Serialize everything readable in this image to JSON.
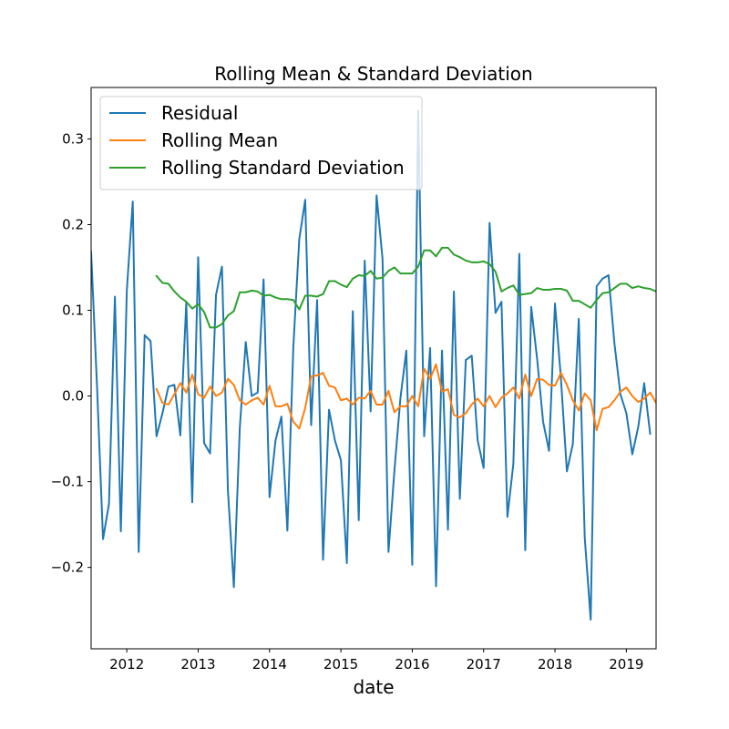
{
  "chart_data": {
    "type": "line",
    "title": "Rolling Mean & Standard Deviation",
    "xlabel": "date",
    "ylabel": "",
    "x_start": "2011-07",
    "x_end": "2019-06",
    "x_ticks": [
      "2012",
      "2013",
      "2014",
      "2015",
      "2016",
      "2017",
      "2018",
      "2019"
    ],
    "xlim": [
      "2011-07",
      "2019-06"
    ],
    "ylim": [
      -0.295,
      0.36
    ],
    "y_ticks": [
      -0.2,
      -0.1,
      0.0,
      0.1,
      0.2,
      0.3
    ],
    "y_tick_labels": [
      "−0.2",
      "−0.1",
      "0.0",
      "0.1",
      "0.2",
      "0.3"
    ],
    "grid": false,
    "legend_position": "upper-left",
    "series": [
      {
        "name": "Residual",
        "color": "#1f77b4",
        "start": "2011-07",
        "values": [
          0.168,
          0.01,
          -0.167,
          -0.126,
          0.116,
          -0.158,
          0.123,
          0.227,
          -0.182,
          0.071,
          0.064,
          -0.047,
          -0.02,
          0.011,
          0.013,
          -0.046,
          0.109,
          -0.124,
          0.162,
          -0.055,
          -0.067,
          0.118,
          0.151,
          -0.11,
          -0.223,
          -0.037,
          0.063,
          0.0,
          0.004,
          0.136,
          -0.118,
          -0.052,
          -0.024,
          -0.157,
          0.057,
          0.183,
          0.229,
          -0.034,
          0.112,
          -0.191,
          -0.016,
          -0.052,
          -0.075,
          -0.195,
          0.099,
          -0.145,
          0.158,
          -0.018,
          0.234,
          0.16,
          -0.182,
          -0.087,
          -0.003,
          0.053,
          -0.197,
          0.333,
          -0.047,
          0.056,
          -0.222,
          0.053,
          -0.156,
          0.122,
          -0.12,
          0.042,
          0.047,
          -0.052,
          -0.084,
          0.202,
          0.097,
          0.11,
          -0.141,
          -0.079,
          0.166,
          -0.18,
          0.104,
          0.043,
          -0.03,
          -0.064,
          0.108,
          0.02,
          -0.088,
          -0.056,
          0.09,
          -0.165,
          -0.261,
          0.128,
          0.137,
          0.141,
          0.061,
          0.002,
          -0.02,
          -0.068,
          -0.036,
          0.015,
          -0.044
        ]
      },
      {
        "name": "Rolling Mean",
        "color": "#ff7f0e",
        "start": "2012-06",
        "values": [
          0.008,
          -0.008,
          -0.01,
          0.002,
          0.015,
          0.004,
          0.025,
          0.002,
          -0.002,
          0.011,
          0.0,
          0.004,
          0.02,
          0.013,
          -0.005,
          -0.01,
          -0.005,
          -0.002,
          -0.01,
          0.012,
          -0.012,
          -0.012,
          -0.009,
          -0.03,
          -0.038,
          -0.014,
          0.023,
          0.024,
          0.027,
          0.012,
          0.01,
          -0.005,
          -0.003,
          -0.01,
          -0.002,
          -0.003,
          0.006,
          -0.01,
          -0.01,
          0.006,
          -0.019,
          -0.012,
          -0.012,
          0.0,
          -0.012,
          0.032,
          0.02,
          0.037,
          0.005,
          0.008,
          -0.022,
          -0.025,
          -0.02,
          -0.01,
          -0.003,
          -0.012,
          0.0,
          -0.013,
          -0.002,
          0.003,
          0.01,
          -0.003,
          0.025,
          0.0,
          0.02,
          0.019,
          0.013,
          0.012,
          0.027,
          0.013,
          -0.005,
          -0.017,
          0.003,
          -0.005,
          -0.04,
          -0.015,
          -0.013,
          -0.005,
          0.005,
          0.01,
          0.0,
          -0.007,
          -0.003,
          0.004,
          -0.008
        ]
      },
      {
        "name": "Rolling Standard Deviation",
        "color": "#2ca02c",
        "start": "2012-06",
        "values": [
          0.14,
          0.132,
          0.131,
          0.122,
          0.115,
          0.11,
          0.102,
          0.107,
          0.098,
          0.08,
          0.08,
          0.084,
          0.094,
          0.099,
          0.121,
          0.121,
          0.123,
          0.122,
          0.117,
          0.118,
          0.115,
          0.113,
          0.113,
          0.112,
          0.101,
          0.117,
          0.117,
          0.116,
          0.119,
          0.134,
          0.134,
          0.13,
          0.127,
          0.137,
          0.141,
          0.14,
          0.146,
          0.137,
          0.138,
          0.146,
          0.15,
          0.143,
          0.143,
          0.143,
          0.151,
          0.17,
          0.17,
          0.163,
          0.173,
          0.173,
          0.165,
          0.162,
          0.158,
          0.156,
          0.156,
          0.157,
          0.154,
          0.145,
          0.122,
          0.126,
          0.129,
          0.118,
          0.119,
          0.12,
          0.126,
          0.124,
          0.124,
          0.125,
          0.125,
          0.123,
          0.111,
          0.111,
          0.107,
          0.103,
          0.112,
          0.12,
          0.121,
          0.126,
          0.131,
          0.131,
          0.126,
          0.128,
          0.126,
          0.125,
          0.122
        ]
      }
    ]
  }
}
